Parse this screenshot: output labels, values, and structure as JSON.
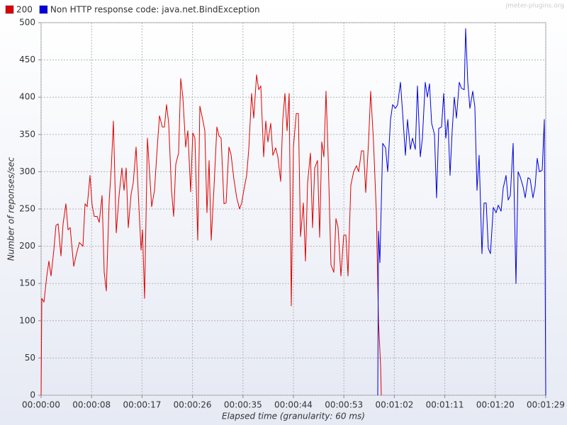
{
  "chart_data": {
    "type": "line",
    "watermark": "jmeter-plugins.org",
    "xlabel": "Elapsed time (granularity: 60 ms)",
    "ylabel": "Number of reponses/sec",
    "legend": "top",
    "grid": true,
    "xlim": [
      0,
      89
    ],
    "ylim": [
      0,
      500
    ],
    "yticks": [
      0,
      50,
      100,
      150,
      200,
      250,
      300,
      350,
      400,
      450,
      500
    ],
    "xticks": [
      {
        "value": 0,
        "label": "00:00:00"
      },
      {
        "value": 8.9,
        "label": "00:00:08"
      },
      {
        "value": 17.8,
        "label": "00:00:17"
      },
      {
        "value": 26.7,
        "label": "00:00:26"
      },
      {
        "value": 35.6,
        "label": "00:00:35"
      },
      {
        "value": 44.5,
        "label": "00:00:44"
      },
      {
        "value": 53.4,
        "label": "00:00:53"
      },
      {
        "value": 62.3,
        "label": "00:01:02"
      },
      {
        "value": 71.2,
        "label": "00:01:11"
      },
      {
        "value": 80.1,
        "label": "00:01:20"
      },
      {
        "value": 89,
        "label": "00:01:29"
      }
    ],
    "series": [
      {
        "name": "200",
        "color": "#e00000",
        "x": [
          0,
          0.125,
          0.5,
          1,
          1.375,
          1.75,
          2.25,
          2.625,
          3,
          3.5,
          3.875,
          4.375,
          4.75,
          5.125,
          5.75,
          6.25,
          6.75,
          7.375,
          7.75,
          8.125,
          8.625,
          9,
          9.375,
          9.875,
          10.25,
          10.75,
          11.125,
          11.5,
          12,
          12.375,
          12.75,
          13.25,
          13.75,
          14.25,
          14.625,
          15,
          15.375,
          15.875,
          16.25,
          16.75,
          17.25,
          17.625,
          17.875,
          18.25,
          18.75,
          19.125,
          19.5,
          20,
          20.375,
          20.875,
          21.375,
          21.75,
          22.125,
          22.5,
          23,
          23.375,
          23.75,
          24.25,
          24.625,
          25,
          25.5,
          25.875,
          26.375,
          26.75,
          27.125,
          27.625,
          28,
          28.5,
          28.875,
          29.25,
          29.625,
          30,
          30.5,
          31,
          31.375,
          31.75,
          32.25,
          32.625,
          33.125,
          33.5,
          34,
          34.5,
          35,
          35.375,
          35.75,
          36.25,
          36.625,
          37.125,
          37.5,
          38,
          38.375,
          38.75,
          39.25,
          39.625,
          40,
          40.5,
          40.875,
          41.375,
          41.75,
          42.25,
          42.625,
          43,
          43.375,
          43.75,
          44.125,
          44.5,
          45,
          45.375,
          45.75,
          46.25,
          46.625,
          47,
          47.5,
          47.875,
          48.25,
          48.75,
          49.125,
          49.5,
          49.875,
          50.25,
          50.625,
          51.125,
          51.625,
          52,
          52.375,
          52.875,
          53.375,
          53.75,
          54.125,
          54.625,
          55.125,
          55.625,
          56,
          56.5,
          56.875,
          57.25,
          57.75,
          58.125,
          58.625,
          59.125,
          59.5,
          59.875,
          60
        ],
        "values": [
          0,
          130,
          125,
          160,
          180,
          160,
          195,
          228,
          230,
          187,
          230,
          257,
          222,
          225,
          173,
          190,
          205,
          200,
          257,
          253,
          295,
          255,
          240,
          240,
          232,
          268,
          165,
          140,
          260,
          305,
          368,
          218,
          268,
          305,
          275,
          305,
          225,
          270,
          285,
          333,
          253,
          195,
          222,
          130,
          345,
          300,
          253,
          275,
          320,
          375,
          360,
          360,
          390,
          365,
          275,
          240,
          310,
          325,
          425,
          400,
          333,
          355,
          273,
          352,
          345,
          208,
          388,
          370,
          355,
          245,
          315,
          208,
          280,
          360,
          348,
          345,
          257,
          258,
          333,
          323,
          290,
          265,
          250,
          258,
          275,
          295,
          330,
          405,
          372,
          430,
          410,
          415,
          320,
          368,
          340,
          365,
          322,
          332,
          320,
          287,
          370,
          405,
          355,
          405,
          120,
          333,
          378,
          378,
          213,
          258,
          180,
          285,
          325,
          225,
          305,
          315,
          212,
          340,
          320,
          408,
          320,
          175,
          165,
          237,
          225,
          160,
          215,
          215,
          160,
          282,
          300,
          308,
          300,
          328,
          328,
          272,
          340,
          408,
          340,
          245,
          100,
          40,
          0
        ]
      },
      {
        "name": "Non HTTP response code: java.net.BindException",
        "color": "#0000e0",
        "x": [
          59.375,
          59.5,
          59.75,
          60.25,
          60.75,
          61.125,
          61.625,
          62,
          62.5,
          62.875,
          63.375,
          63.75,
          64.25,
          64.625,
          65.125,
          65.5,
          66,
          66.375,
          66.875,
          67.25,
          67.75,
          68.125,
          68.5,
          68.875,
          69.375,
          69.75,
          70.125,
          70.625,
          71,
          71.375,
          71.75,
          72.125,
          72.5,
          72.875,
          73.25,
          73.75,
          74.125,
          74.625,
          74.875,
          75.25,
          75.625,
          76.125,
          76.5,
          76.875,
          77.25,
          77.75,
          78.125,
          78.5,
          78.875,
          79.25,
          79.75,
          80.25,
          80.625,
          81.125,
          81.5,
          82,
          82.375,
          82.75,
          83.25,
          83.75,
          84.125,
          84.5,
          85,
          85.375,
          85.875,
          86.25,
          86.75,
          87.125,
          87.5,
          87.875,
          88.375,
          88.75,
          89
        ],
        "values": [
          0,
          220,
          178,
          338,
          332,
          300,
          370,
          390,
          385,
          390,
          420,
          380,
          322,
          370,
          330,
          345,
          330,
          415,
          320,
          345,
          420,
          400,
          418,
          365,
          350,
          265,
          358,
          360,
          405,
          345,
          370,
          295,
          355,
          400,
          372,
          420,
          412,
          410,
          492,
          420,
          385,
          408,
          387,
          275,
          322,
          190,
          258,
          258,
          197,
          190,
          252,
          245,
          255,
          247,
          278,
          295,
          262,
          268,
          338,
          150,
          300,
          293,
          280,
          265,
          292,
          290,
          265,
          280,
          318,
          300,
          302,
          370,
          0
        ]
      }
    ]
  }
}
